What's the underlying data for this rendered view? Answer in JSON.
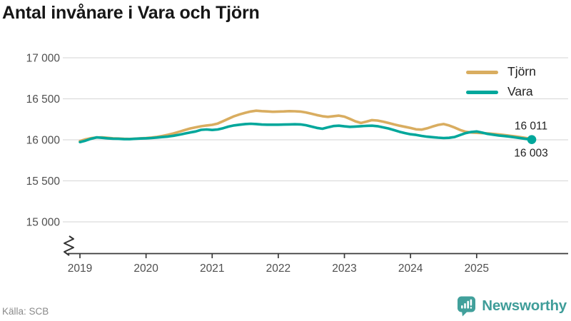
{
  "header": {
    "title": "Antal invånare i Vara och Tjörn"
  },
  "footer": {
    "source": "Källa: SCB",
    "brand": "Newsworthy"
  },
  "colors": {
    "tjorn": "#d9ad60",
    "vara": "#00a79b",
    "grid": "#dcdcdc",
    "axis": "#3a3a3a",
    "axis_label": "#4f4f4f",
    "end_label": "#1f1f1f",
    "brand_teal": "#41a09b"
  },
  "chart_data": {
    "type": "line",
    "title": "Antal invånare i Vara och Tjörn",
    "xlabel": "",
    "ylabel": "",
    "x_unit": "month",
    "x_start": "2019-01",
    "x_end": "2025-11",
    "x_tick_labels": [
      "2019",
      "2020",
      "2021",
      "2022",
      "2023",
      "2024",
      "2025"
    ],
    "y_ticks": [
      15000,
      15500,
      16000,
      16500,
      17000
    ],
    "y_tick_labels": [
      "15 000",
      "15 500",
      "16 000",
      "16 500",
      "17 000"
    ],
    "ylim": [
      15000,
      17000
    ],
    "axis_break": true,
    "grid": "horizontal",
    "legend_position": "top-right",
    "series": [
      {
        "name": "Tjörn",
        "color": "#d9ad60",
        "end_label": "16 011",
        "end_value": 16011,
        "values": [
          15985,
          16005,
          16020,
          16028,
          16030,
          16024,
          16018,
          16016,
          16012,
          16010,
          16014,
          16018,
          16022,
          16028,
          16036,
          16048,
          16062,
          16078,
          16098,
          16118,
          16138,
          16152,
          16165,
          16175,
          16183,
          16198,
          16228,
          16258,
          16288,
          16310,
          16330,
          16345,
          16355,
          16350,
          16346,
          16342,
          16344,
          16346,
          16350,
          16348,
          16344,
          16334,
          16318,
          16302,
          16288,
          16280,
          16288,
          16295,
          16283,
          16255,
          16225,
          16205,
          16222,
          16240,
          16235,
          16222,
          16205,
          16188,
          16172,
          16158,
          16144,
          16128,
          16124,
          16140,
          16162,
          16182,
          16192,
          16175,
          16150,
          16120,
          16098,
          16090,
          16085,
          16082,
          16078,
          16072,
          16066,
          16058,
          16050,
          16042,
          16032,
          16022,
          16011
        ]
      },
      {
        "name": "Vara",
        "color": "#00a79b",
        "end_label": "16 003",
        "end_value": 16003,
        "values": [
          15972,
          15990,
          16012,
          16030,
          16024,
          16018,
          16014,
          16012,
          16008,
          16008,
          16012,
          16016,
          16018,
          16022,
          16028,
          16034,
          16040,
          16050,
          16062,
          16076,
          16090,
          16102,
          16122,
          16126,
          16120,
          16126,
          16142,
          16162,
          16176,
          16184,
          16192,
          16196,
          16192,
          16186,
          16184,
          16184,
          16184,
          16186,
          16188,
          16190,
          16188,
          16178,
          16162,
          16145,
          16135,
          16152,
          16168,
          16172,
          16164,
          16158,
          16162,
          16166,
          16170,
          16172,
          16166,
          16152,
          16138,
          16118,
          16098,
          16082,
          16068,
          16060,
          16048,
          16038,
          16032,
          16026,
          16022,
          16024,
          16034,
          16058,
          16082,
          16096,
          16102,
          16088,
          16072,
          16062,
          16052,
          16046,
          16038,
          16030,
          16020,
          16010,
          16003
        ]
      }
    ]
  }
}
